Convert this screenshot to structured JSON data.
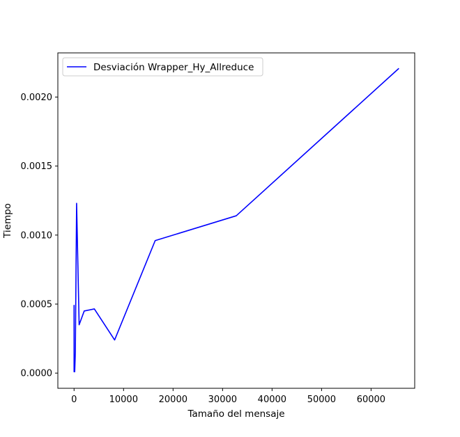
{
  "chart_data": {
    "type": "line",
    "title": "",
    "xlabel": "Tamaño del mensaje",
    "ylabel": "Tiempo",
    "xlim": [
      -3277,
      68813
    ],
    "ylim": [
      -0.00011,
      0.00232
    ],
    "xticks": [
      0,
      10000,
      20000,
      30000,
      40000,
      50000,
      60000
    ],
    "xtick_labels": [
      "0",
      "10000",
      "20000",
      "30000",
      "40000",
      "50000",
      "60000"
    ],
    "yticks": [
      0.0,
      0.0005,
      0.001,
      0.0015,
      0.002
    ],
    "ytick_labels": [
      "0.0000",
      "0.0005",
      "0.0010",
      "0.0015",
      "0.0020"
    ],
    "grid": false,
    "legend_position": "top-left",
    "series": [
      {
        "name": "Desviación Wrapper_Hy_Allreduce",
        "color": "#0000ff",
        "x": [
          1,
          2,
          4,
          8,
          16,
          32,
          64,
          128,
          256,
          512,
          1024,
          2048,
          4096,
          8192,
          16384,
          32768,
          65536
        ],
        "y": [
          0.00049,
          3e-05,
          1e-05,
          2e-05,
          1e-05,
          4e-05,
          2e-05,
          1e-05,
          0.00015,
          0.00123,
          0.00035,
          0.00045,
          0.000465,
          0.00024,
          0.00096,
          0.00114,
          0.002205
        ]
      }
    ]
  }
}
